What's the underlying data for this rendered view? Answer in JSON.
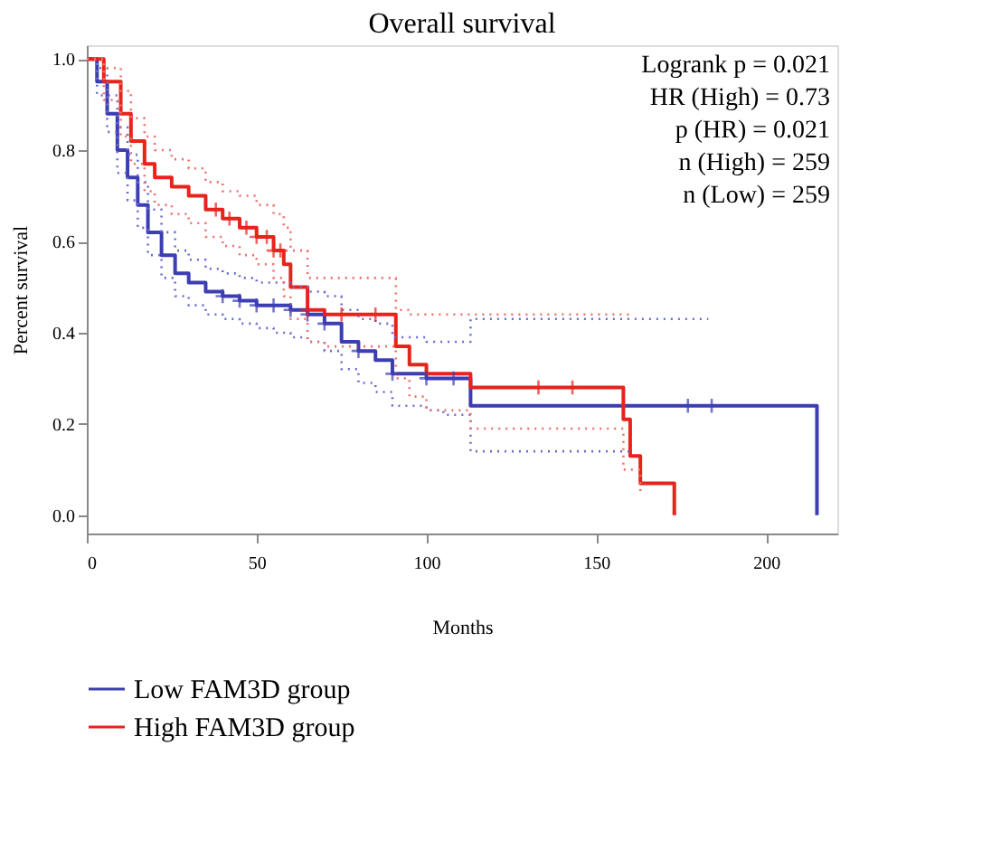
{
  "chart_data": {
    "type": "step",
    "title": "Overall survival",
    "xlabel": "Months",
    "ylabel": "Percent survival",
    "xlim": [
      0,
      221
    ],
    "xticks": [
      0,
      50,
      100,
      150,
      200
    ],
    "ylim": [
      -0.04,
      1.03
    ],
    "yticks": [
      {
        "value": 0,
        "label": "0.0"
      },
      {
        "value": 0.2,
        "label": "0.2"
      },
      {
        "value": 0.4,
        "label": "0.4"
      },
      {
        "value": 0.6,
        "label": "0.6"
      },
      {
        "value": 0.8,
        "label": "0.8"
      },
      {
        "value": 1,
        "label": "1.0"
      }
    ],
    "grid": false,
    "legend": "bottom",
    "line_style": "solid",
    "annotations": [
      "Logrank p = 0.021",
      "HR (High) = 0.73",
      "p (HR) = 0.021",
      "n (High) = 259",
      "n (Low) = 259"
    ],
    "series": [
      {
        "name": "Low FAM3D group",
        "color": "#3d3db4",
        "x": [
          0,
          3,
          6,
          9,
          12,
          15,
          18,
          22,
          26,
          30,
          35,
          40,
          45,
          50,
          55,
          60,
          65,
          70,
          75,
          80,
          85,
          90,
          100,
          105,
          113,
          183,
          215
        ],
        "values": [
          1.0,
          0.95,
          0.88,
          0.8,
          0.74,
          0.68,
          0.62,
          0.57,
          0.53,
          0.51,
          0.49,
          0.48,
          0.47,
          0.46,
          0.46,
          0.45,
          0.44,
          0.42,
          0.38,
          0.36,
          0.34,
          0.31,
          0.3,
          0.3,
          0.24,
          0.24,
          0.0
        ]
      },
      {
        "name": "High FAM3D group",
        "color": "#e8231c",
        "x": [
          0,
          5,
          10,
          13,
          17,
          20,
          25,
          30,
          35,
          40,
          45,
          50,
          55,
          58,
          60,
          65,
          70,
          91,
          95,
          100,
          113,
          158,
          160,
          163,
          173
        ],
        "values": [
          1.0,
          0.95,
          0.88,
          0.82,
          0.77,
          0.74,
          0.72,
          0.7,
          0.67,
          0.65,
          0.63,
          0.61,
          0.58,
          0.55,
          0.5,
          0.45,
          0.44,
          0.37,
          0.33,
          0.31,
          0.28,
          0.21,
          0.13,
          0.07,
          0.0
        ]
      },
      {
        "color": "#6c6cd0",
        "line_style": "dotted",
        "x": [
          0,
          3,
          6,
          9,
          12,
          15,
          18,
          22,
          26,
          30,
          35,
          40,
          45,
          50,
          55,
          60,
          65,
          70,
          75,
          80,
          85,
          90,
          100,
          105,
          113,
          160
        ],
        "values": [
          1.0,
          0.92,
          0.84,
          0.75,
          0.69,
          0.63,
          0.57,
          0.52,
          0.48,
          0.46,
          0.44,
          0.43,
          0.42,
          0.41,
          0.4,
          0.39,
          0.38,
          0.36,
          0.32,
          0.29,
          0.27,
          0.24,
          0.23,
          0.22,
          0.14,
          0.14
        ]
      },
      {
        "color": "#6c6cd0",
        "line_style": "dotted",
        "x": [
          0,
          3,
          6,
          9,
          12,
          15,
          18,
          22,
          26,
          30,
          35,
          40,
          45,
          50,
          55,
          60,
          65,
          70,
          75,
          80,
          85,
          90,
          100,
          105,
          113,
          183
        ],
        "values": [
          1.0,
          0.98,
          0.92,
          0.85,
          0.79,
          0.73,
          0.67,
          0.62,
          0.58,
          0.56,
          0.54,
          0.53,
          0.52,
          0.51,
          0.51,
          0.5,
          0.49,
          0.48,
          0.45,
          0.43,
          0.42,
          0.39,
          0.38,
          0.38,
          0.43,
          0.43
        ]
      },
      {
        "color": "#ef6f6a",
        "line_style": "dotted",
        "x": [
          0,
          5,
          10,
          13,
          17,
          20,
          25,
          30,
          35,
          40,
          45,
          50,
          55,
          58,
          60,
          65,
          70,
          91,
          95,
          100,
          113,
          158,
          163
        ],
        "values": [
          1.0,
          0.91,
          0.83,
          0.77,
          0.71,
          0.68,
          0.66,
          0.64,
          0.61,
          0.59,
          0.57,
          0.55,
          0.52,
          0.48,
          0.43,
          0.38,
          0.37,
          0.3,
          0.26,
          0.23,
          0.19,
          0.1,
          0.05
        ]
      },
      {
        "color": "#ef6f6a",
        "line_style": "dotted",
        "x": [
          0,
          5,
          10,
          13,
          17,
          20,
          25,
          30,
          35,
          40,
          45,
          50,
          55,
          58,
          60,
          65,
          70,
          91,
          95,
          100,
          113,
          160
        ],
        "values": [
          1.0,
          0.98,
          0.93,
          0.87,
          0.83,
          0.8,
          0.78,
          0.76,
          0.73,
          0.71,
          0.7,
          0.68,
          0.66,
          0.63,
          0.58,
          0.52,
          0.52,
          0.45,
          0.44,
          0.44,
          0.44,
          0.44
        ]
      },
      {
        "color": "#3d3db4",
        "type": "scatter",
        "marker": "cross",
        "x": [
          40,
          45,
          50,
          55,
          60,
          65,
          70,
          80,
          90,
          100,
          108,
          177,
          184
        ],
        "values": [
          0.48,
          0.47,
          0.46,
          0.46,
          0.45,
          0.44,
          0.42,
          0.36,
          0.31,
          0.3,
          0.3,
          0.24,
          0.24
        ]
      },
      {
        "color": "#e8231c",
        "type": "scatter",
        "marker": "cross",
        "x": [
          38,
          42,
          47,
          50,
          53,
          55,
          57,
          65,
          75,
          85,
          133,
          143
        ],
        "values": [
          0.67,
          0.65,
          0.63,
          0.61,
          0.61,
          0.58,
          0.58,
          0.45,
          0.44,
          0.44,
          0.28,
          0.28
        ]
      }
    ]
  }
}
